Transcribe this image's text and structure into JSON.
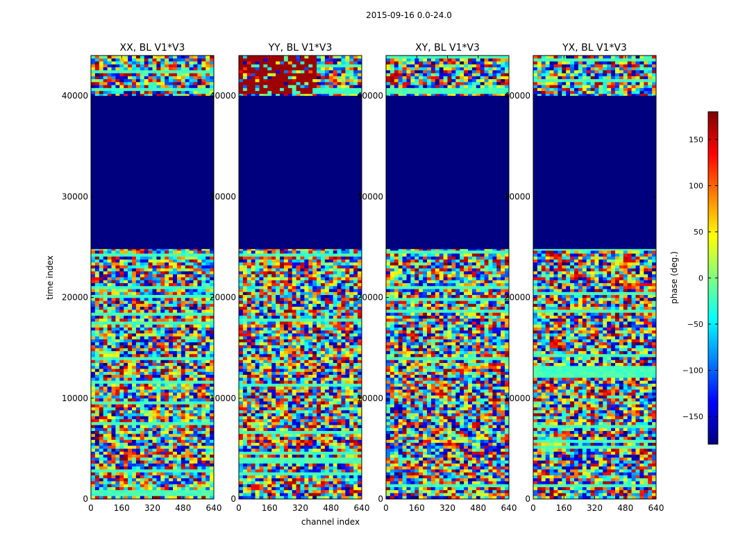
{
  "figure": {
    "suptitle": "2015-09-16 0.0-24.0",
    "xlabel": "channel index",
    "ylabel": "time index",
    "colorbar_label": "phase (deg.)"
  },
  "chart_data": {
    "type": "heatmap",
    "colormap": "jet",
    "clim": [
      -180,
      180
    ],
    "colorbar_ticks": [
      150,
      100,
      50,
      0,
      -50,
      -100,
      -150
    ],
    "colorbar_tick_labels": [
      "150",
      "100",
      "50",
      "0",
      "−50",
      "−100",
      "−150"
    ],
    "xlim": [
      0,
      640
    ],
    "x_ticks": [
      0,
      160,
      320,
      480,
      640
    ],
    "x_tick_labels": [
      "0",
      "160",
      "320",
      "480",
      "640"
    ],
    "ylim": [
      0,
      44000
    ],
    "y_ticks": [
      0,
      10000,
      20000,
      30000,
      40000
    ],
    "y_tick_labels": [
      "0",
      "10000",
      "20000",
      "30000",
      "40000"
    ],
    "panels": [
      {
        "title": "XX, BL V1*V3",
        "masked_time_range": [
          24800,
          40000
        ]
      },
      {
        "title": "YY, BL V1*V3",
        "masked_time_range": [
          24800,
          40000
        ]
      },
      {
        "title": "XY, BL V1*V3",
        "masked_time_range": [
          24800,
          40000
        ]
      },
      {
        "title": "YX, BL V1*V3",
        "masked_time_range": [
          24800,
          40000
        ]
      }
    ]
  }
}
